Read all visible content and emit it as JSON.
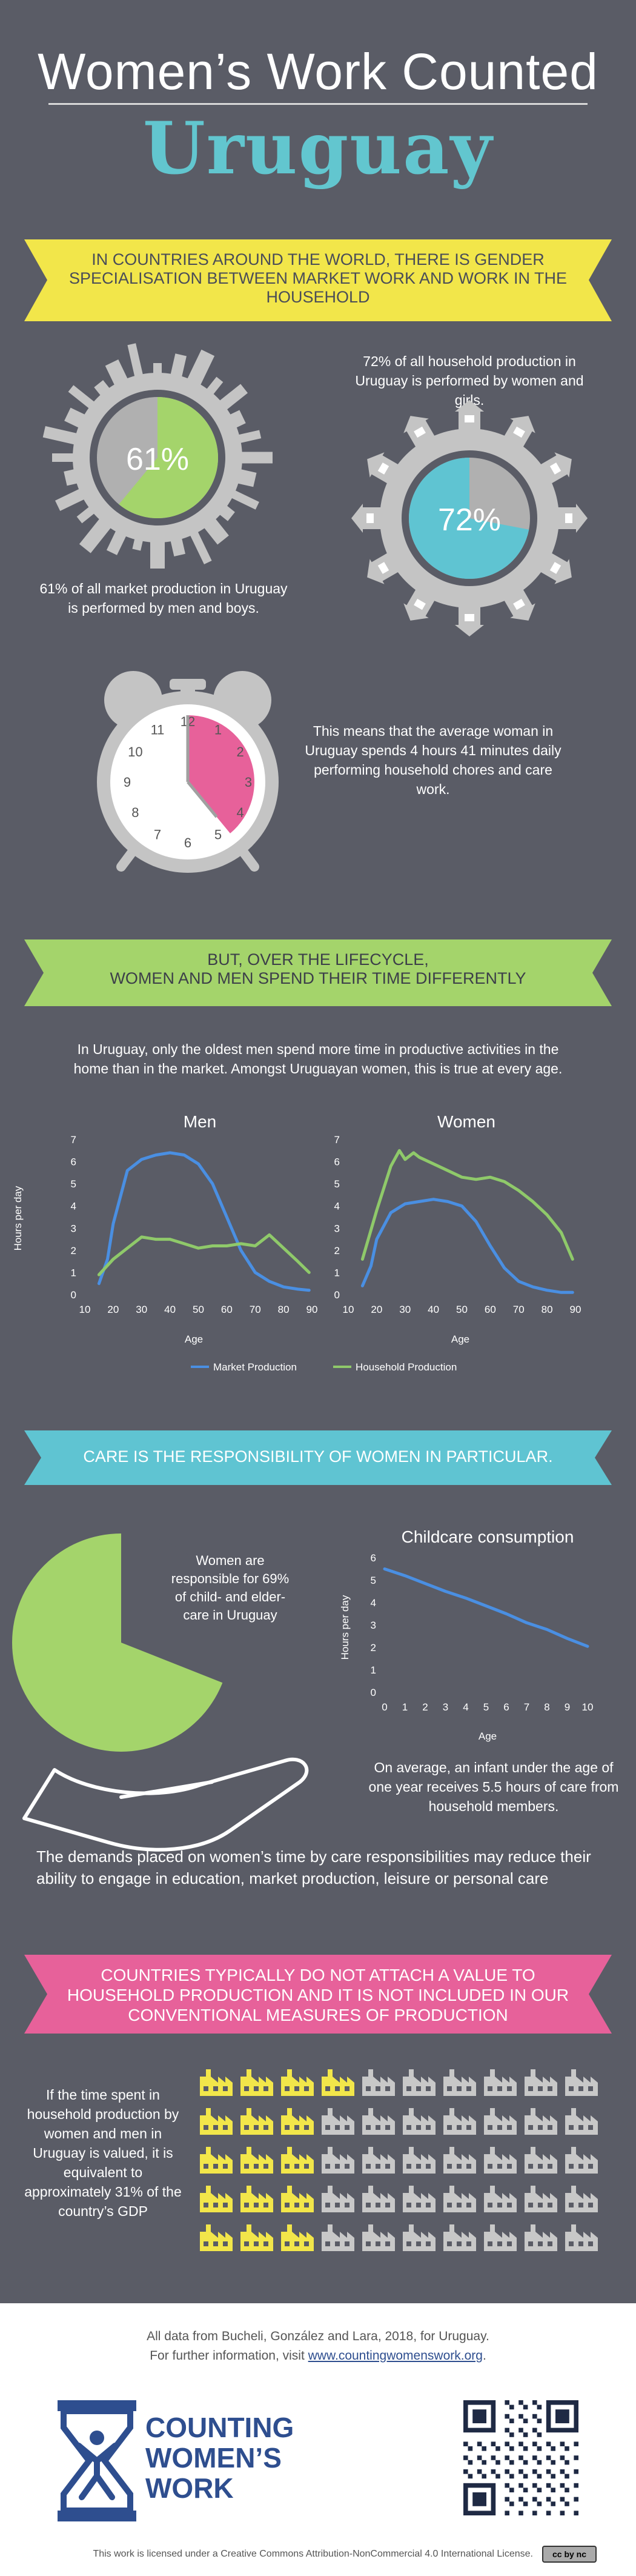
{
  "header": {
    "title": "Women’s Work Counted",
    "country": "Uruguay"
  },
  "section1": {
    "banner": "IN COUNTRIES AROUND THE WORLD, THERE IS GENDER SPECIALISATION BETWEEN MARKET WORK AND WORK IN THE HOUSEHOLD",
    "market_pct_label": "61%",
    "market_pct": 61,
    "market_caption": "61% of all market production in Uruguay is performed by men and boys.",
    "household_pct_label": "72%",
    "household_pct": 72,
    "household_caption": "72% of all household production in Uruguay is performed by women and girls.",
    "clock_caption": "This means that the average woman in Uruguay spends 4 hours 41 minutes daily performing household chores and care work.",
    "clock_hours": 4.683,
    "clock_numbers": [
      "12",
      "1",
      "2",
      "3",
      "4",
      "5",
      "6",
      "7",
      "8",
      "9",
      "10",
      "11"
    ]
  },
  "section2": {
    "banner_line1": "BUT, OVER THE LIFECYCLE,",
    "banner_line2": "WOMEN AND MEN SPEND THEIR TIME DIFFERENTLY",
    "intro": "In Uruguay, only the oldest men spend more time in productive activities in the home than in the market. Amongst Uruguayan women, this is true at every age."
  },
  "chart_data": [
    {
      "type": "line",
      "title": "Men",
      "xlabel": "Age",
      "ylabel": "Hours per day",
      "xlim": [
        10,
        90
      ],
      "ylim": [
        0,
        7
      ],
      "x_ticks": [
        "10",
        "20",
        "30",
        "40",
        "50",
        "60",
        "70",
        "80",
        "90"
      ],
      "y_ticks": [
        "0",
        "1",
        "2",
        "3",
        "4",
        "5",
        "6",
        "7"
      ],
      "series": [
        {
          "name": "Market Production",
          "color": "#4a8fe2",
          "x": [
            15,
            18,
            20,
            25,
            30,
            35,
            40,
            45,
            50,
            55,
            60,
            65,
            70,
            75,
            80,
            85,
            89
          ],
          "y": [
            0.5,
            1.6,
            3.2,
            5.6,
            6.1,
            6.3,
            6.4,
            6.3,
            5.9,
            5.0,
            3.5,
            2.0,
            1.0,
            0.6,
            0.35,
            0.25,
            0.2
          ]
        },
        {
          "name": "Household Production",
          "color": "#8fc96a",
          "x": [
            15,
            20,
            25,
            30,
            35,
            40,
            45,
            50,
            55,
            60,
            65,
            70,
            75,
            80,
            85,
            89
          ],
          "y": [
            0.9,
            1.6,
            2.1,
            2.6,
            2.5,
            2.5,
            2.3,
            2.1,
            2.2,
            2.2,
            2.3,
            2.2,
            2.7,
            2.1,
            1.5,
            1.0
          ]
        }
      ]
    },
    {
      "type": "line",
      "title": "Women",
      "xlabel": "Age",
      "ylabel": "",
      "xlim": [
        10,
        90
      ],
      "ylim": [
        0,
        7
      ],
      "x_ticks": [
        "10",
        "20",
        "30",
        "40",
        "50",
        "60",
        "70",
        "80",
        "90"
      ],
      "y_ticks": [
        "0",
        "1",
        "2",
        "3",
        "4",
        "5",
        "6",
        "7"
      ],
      "series": [
        {
          "name": "Market Production",
          "color": "#4a8fe2",
          "x": [
            15,
            18,
            20,
            25,
            30,
            35,
            40,
            45,
            50,
            55,
            60,
            65,
            70,
            75,
            80,
            85,
            89
          ],
          "y": [
            0.4,
            1.3,
            2.5,
            3.7,
            4.1,
            4.2,
            4.3,
            4.2,
            4.0,
            3.3,
            2.2,
            1.2,
            0.6,
            0.35,
            0.2,
            0.1,
            0.1
          ]
        },
        {
          "name": "Household Production",
          "color": "#8fc96a",
          "x": [
            15,
            20,
            25,
            28,
            30,
            33,
            35,
            40,
            45,
            50,
            55,
            60,
            65,
            70,
            75,
            80,
            85,
            89
          ],
          "y": [
            1.6,
            3.8,
            5.8,
            6.5,
            6.1,
            6.4,
            6.2,
            5.9,
            5.6,
            5.3,
            5.2,
            5.3,
            5.1,
            4.7,
            4.2,
            3.6,
            2.8,
            1.6
          ]
        }
      ]
    },
    {
      "type": "line",
      "title": "Childcare consumption",
      "xlabel": "Age",
      "ylabel": "Hours per day",
      "xlim": [
        0,
        10
      ],
      "ylim": [
        0,
        6
      ],
      "x_ticks": [
        "0",
        "1",
        "2",
        "3",
        "4",
        "5",
        "6",
        "7",
        "8",
        "9",
        "10"
      ],
      "y_ticks": [
        "0",
        "1",
        "2",
        "3",
        "4",
        "5",
        "6"
      ],
      "series": [
        {
          "name": "",
          "color": "#4a8fe2",
          "x": [
            0,
            1,
            2,
            3,
            4,
            5,
            6,
            7,
            8,
            9,
            10
          ],
          "y": [
            5.5,
            5.2,
            4.85,
            4.5,
            4.2,
            3.85,
            3.5,
            3.1,
            2.8,
            2.4,
            2.05
          ]
        }
      ]
    }
  ],
  "legend": {
    "market": "Market Production",
    "household": "Household Production",
    "market_color": "#4a8fe2",
    "household_color": "#8fc96a"
  },
  "section3": {
    "banner": "CARE IS THE RESPONSIBILITY OF WOMEN IN PARTICULAR.",
    "care_pct": 69,
    "care_text": "Women are responsible for 69% of child- and elder-care in Uruguay",
    "infant_text": "On average, an infant under the age of one year receives 5.5 hours of care from household members.",
    "demands_text": "The demands placed on women’s time by care responsibilities may reduce their ability to engage in education, market production, leisure or personal care"
  },
  "section4": {
    "banner": "COUNTRIES TYPICALLY DO NOT ATTACH A VALUE TO HOUSEHOLD PRODUCTION AND IT IS NOT INCLUDED IN OUR CONVENTIONAL MEASURES OF PRODUCTION",
    "gdp_text": "If the time spent in household production by women and men in Uruguay is valued, it is equivalent to approximately 31% of the country’s GDP",
    "gdp_pct": 31,
    "icon_total": 50
  },
  "footer": {
    "source_line1": "All data from Bucheli, González and Lara, 2018, for Uruguay.",
    "source_line2_prefix": "For further information, visit ",
    "source_link": "www.countingwomenswork.org",
    "source_line2_suffix": ".",
    "logo_line1": "COUNTING",
    "logo_line2": "WOMEN’S",
    "logo_line3": "WORK",
    "license": "This work is licensed under a Creative Commons Attribution-NonCommercial 4.0 International License.",
    "cc_badge": "cc by nc"
  },
  "colors": {
    "background": "#5a5c66",
    "yellow": "#f2e64a",
    "green": "#a4d46b",
    "teal": "#5fc4d2",
    "pink": "#e7619a",
    "blue": "#4a8fe2",
    "grey": "#a8a8a8",
    "navy": "#2e4e8f"
  }
}
